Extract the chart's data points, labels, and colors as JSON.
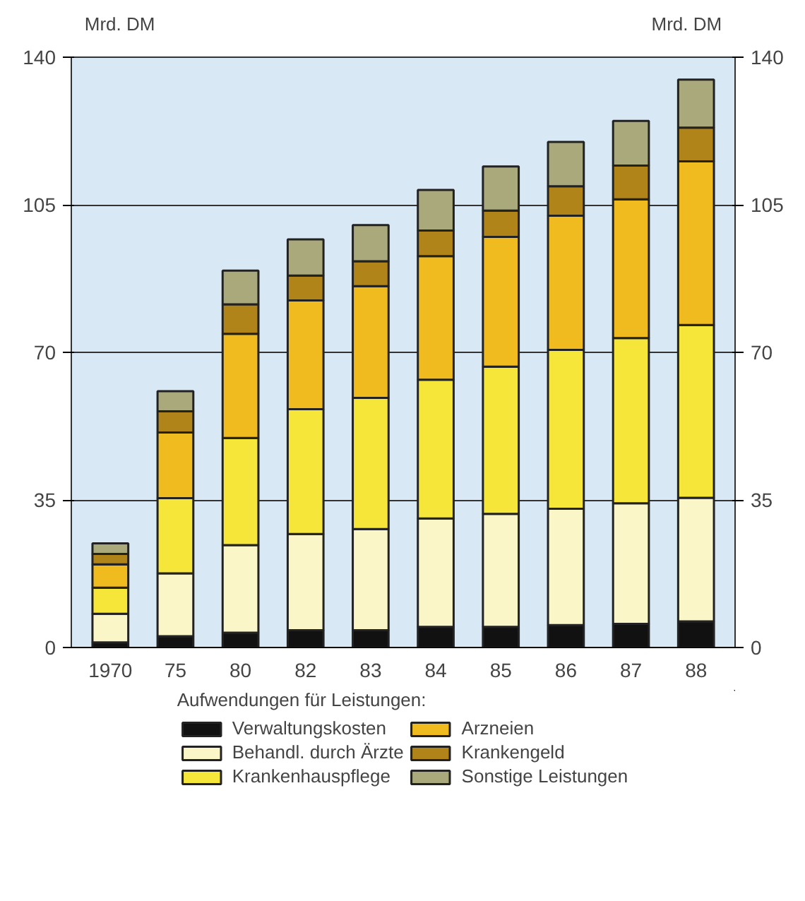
{
  "chart_data": {
    "type": "bar",
    "stacked": true,
    "ylabel": "Mrd. DM",
    "y2label": "Mrd. DM",
    "legend_title": "Aufwendungen für Leistungen:",
    "categories": [
      "1970",
      "75",
      "80",
      "82",
      "83",
      "84",
      "85",
      "86",
      "87",
      "88"
    ],
    "series": [
      {
        "name": "Verwaltungskosten",
        "color": "#111111",
        "values": [
          1.2,
          2.7,
          3.5,
          4.1,
          4.1,
          4.9,
          4.9,
          5.3,
          5.6,
          6.2
        ]
      },
      {
        "name": "Behandl. durch Ärzte",
        "color": "#fbf6c8",
        "values": [
          6.8,
          14.9,
          20.8,
          22.8,
          24.0,
          25.7,
          26.8,
          27.6,
          28.6,
          29.3
        ]
      },
      {
        "name": "Krankenhauspflege",
        "color": "#f6e63a",
        "values": [
          6.2,
          17.8,
          25.4,
          29.6,
          31.1,
          32.9,
          34.9,
          37.7,
          39.2,
          41.0
        ]
      },
      {
        "name": "Arzneien",
        "color": "#f0bb1e",
        "values": [
          5.5,
          15.6,
          24.7,
          25.8,
          26.5,
          29.3,
          30.8,
          31.8,
          32.9,
          38.8
        ]
      },
      {
        "name": "Krankengeld",
        "color": "#b08418",
        "values": [
          2.5,
          5.0,
          7.0,
          5.9,
          5.9,
          6.1,
          6.2,
          7.0,
          8.0,
          8.0
        ]
      },
      {
        "name": "Sonstige Leistungen",
        "color": "#a9a97c",
        "values": [
          2.5,
          4.8,
          8.0,
          8.6,
          8.6,
          9.6,
          10.5,
          10.5,
          10.6,
          11.4
        ]
      }
    ],
    "ylim": [
      0,
      140
    ],
    "yticks": [
      0,
      35,
      70,
      105,
      140
    ],
    "y2lim": [
      0,
      140
    ],
    "y2ticks": [
      0,
      35,
      70,
      105,
      140
    ],
    "grid": "y",
    "legend": "bottom"
  }
}
